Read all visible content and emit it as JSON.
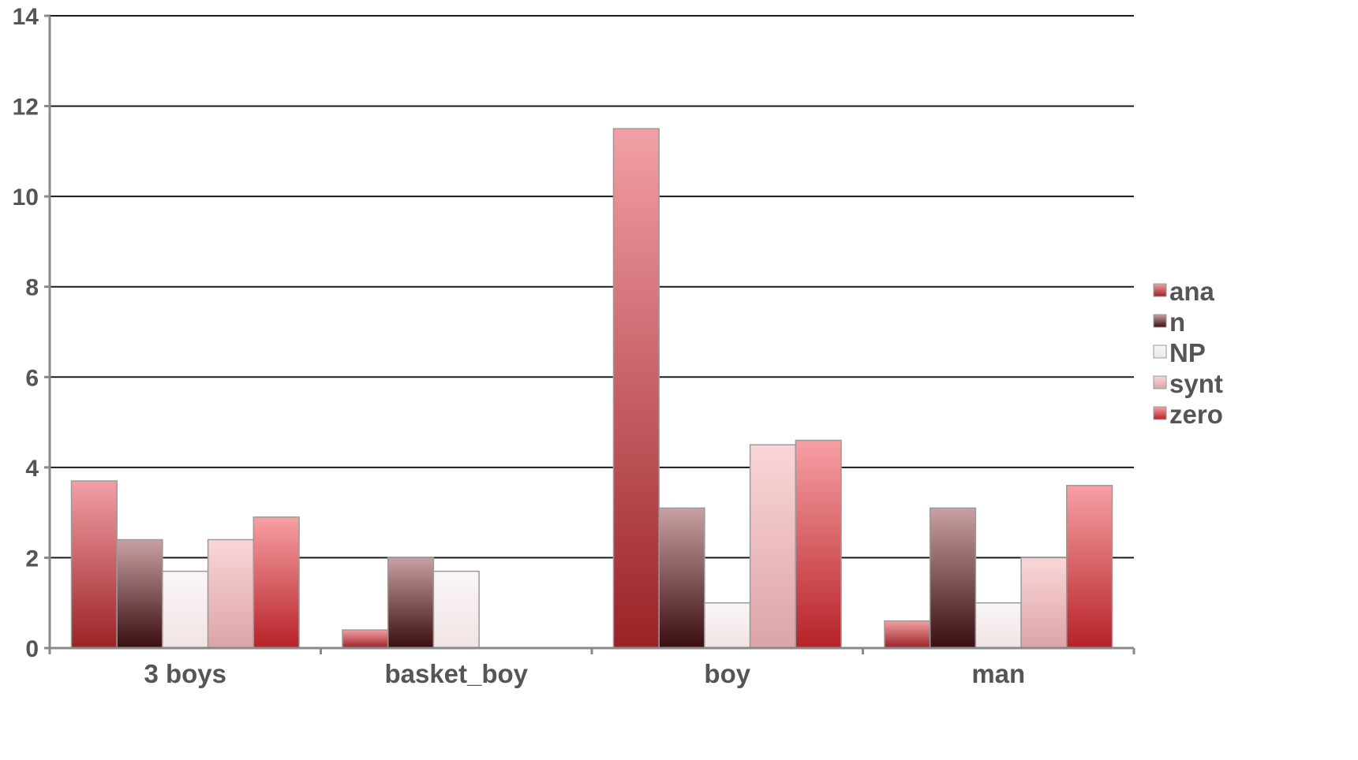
{
  "chart_data": {
    "type": "bar",
    "title": "",
    "xlabel": "",
    "ylabel": "",
    "ylim": [
      0,
      14
    ],
    "yticks": [
      0,
      2,
      4,
      6,
      8,
      10,
      12,
      14
    ],
    "grid": true,
    "legend_position": "right",
    "categories": [
      "3 boys",
      "basket_boy",
      "boy",
      "man"
    ],
    "series": [
      {
        "name": "ana",
        "values": [
          3.7,
          0.4,
          11.5,
          0.6
        ],
        "color_light": "#f2a0a6",
        "color_dark": "#9a2226"
      },
      {
        "name": "n",
        "values": [
          2.4,
          2.0,
          3.1,
          3.1
        ],
        "color_light": "#c9a0a3",
        "color_dark": "#3a0d0f"
      },
      {
        "name": "NP",
        "values": [
          1.7,
          1.7,
          1.0,
          1.0
        ],
        "color_light": "#fbf6f6",
        "color_dark": "#f1e4e4"
      },
      {
        "name": "synt",
        "values": [
          2.4,
          0,
          4.5,
          2.0
        ],
        "color_light": "#fad6d8",
        "color_dark": "#dca4a8"
      },
      {
        "name": "zero",
        "values": [
          2.9,
          0,
          4.6,
          3.6
        ],
        "color_light": "#f7a0a4",
        "color_dark": "#b62228"
      }
    ]
  }
}
